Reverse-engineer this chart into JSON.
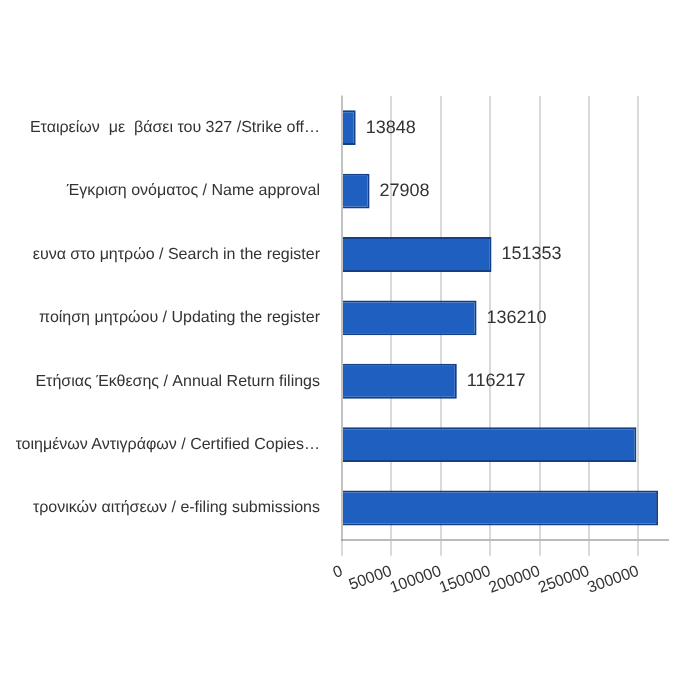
{
  "chart_data": {
    "type": "bar",
    "orientation": "horizontal",
    "categories": [
      "Εταιρείων  με  βάσει του 327 /Strike off…",
      "Έγκριση ονόματος / Name approval",
      "ευνα στο μητρώο / Search in the register",
      "ποίηση μητρώου / Updating the register",
      "Ετήσιας Έκθεσης / Annual Return filings",
      "τοιημένων Αντιγράφων / Certified Copies…",
      "τρονικών αιτήσεων / e-filing submissions"
    ],
    "values": [
      13848,
      27908,
      151353,
      136210,
      116217,
      298000,
      320000
    ],
    "value_labels": [
      "13848",
      "27908",
      "151353",
      "136210",
      "116217",
      null,
      null
    ],
    "color": "#1f5fbf",
    "xlim": [
      0,
      330000
    ],
    "xticks": [
      0,
      50000,
      100000,
      150000,
      200000,
      250000,
      300000
    ],
    "grid": "x",
    "legend": false
  }
}
